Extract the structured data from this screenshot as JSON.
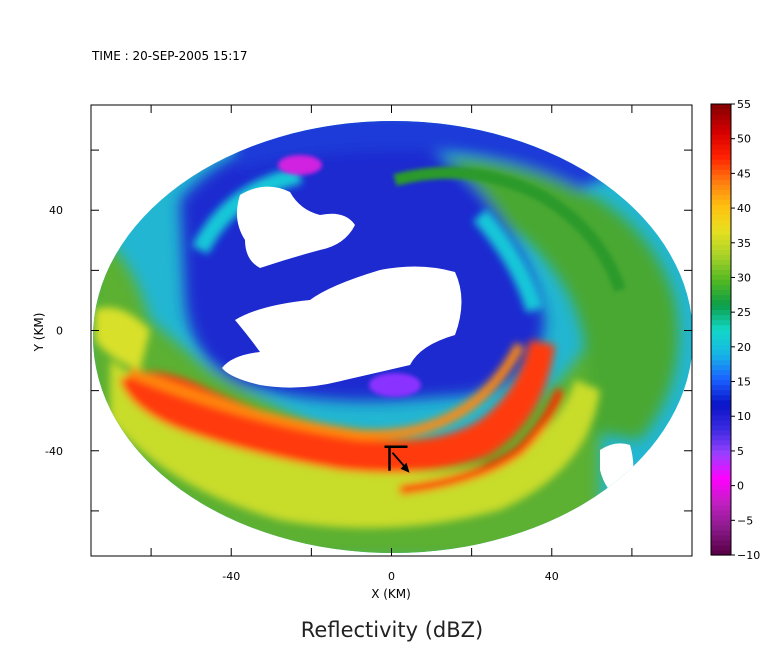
{
  "time_label": "TIME : 20-SEP-2005 15:17",
  "chart_data": {
    "type": "heatmap",
    "title": "Reflectivity (dBZ)",
    "xlabel": "X (KM)",
    "ylabel": "Y (KM)",
    "xlim": [
      -75,
      75
    ],
    "ylim": [
      -75,
      75
    ],
    "x_ticks": [
      -40,
      0,
      40
    ],
    "y_ticks": [
      -40,
      0,
      40
    ],
    "x_minor_ticks": [
      -60,
      -40,
      -20,
      0,
      20,
      40,
      60
    ],
    "y_minor_ticks": [
      -60,
      -40,
      -20,
      0,
      20,
      40,
      60
    ],
    "colorbar": {
      "min": -10,
      "max": 55,
      "step": 5,
      "tick_labels": [
        "55",
        "50",
        "45",
        "40",
        "35",
        "30",
        "25",
        "20",
        "15",
        "10",
        "5",
        "0",
        "−5",
        "−10"
      ]
    },
    "storm_marker": {
      "x": 0,
      "y": -40
    },
    "legend": "colorbar-right",
    "grid": false
  },
  "colors": {
    "scale": [
      "#5a0048",
      "#8a1a8a",
      "#c020c0",
      "#ff00ff",
      "#9a40ff",
      "#3a2ae0",
      "#0a14c8",
      "#1a60ff",
      "#18b4e6",
      "#12d8c8",
      "#0c9e48",
      "#52b822",
      "#a8d22a",
      "#e8e020",
      "#ffc010",
      "#ff7a10",
      "#ff2000",
      "#d40000",
      "#8a0000"
    ],
    "echo_main_band": "#ff3a10",
    "echo_green": "#5cb030",
    "echo_blue": "#1a2ad0",
    "no_echo": "#ffffff"
  }
}
